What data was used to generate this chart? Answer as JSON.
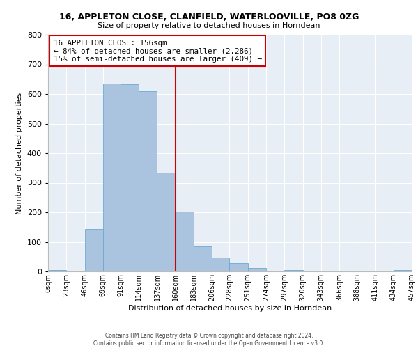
{
  "title": "16, APPLETON CLOSE, CLANFIELD, WATERLOOVILLE, PO8 0ZG",
  "subtitle": "Size of property relative to detached houses in Horndean",
  "xlabel": "Distribution of detached houses by size in Horndean",
  "ylabel": "Number of detached properties",
  "bin_edges": [
    0,
    23,
    46,
    69,
    91,
    114,
    137,
    160,
    183,
    206,
    228,
    251,
    274,
    297,
    320,
    343,
    366,
    388,
    411,
    434,
    457
  ],
  "counts": [
    5,
    0,
    143,
    635,
    632,
    610,
    333,
    202,
    85,
    47,
    28,
    12,
    0,
    5,
    0,
    0,
    0,
    0,
    0,
    5
  ],
  "tick_labels": [
    "0sqm",
    "23sqm",
    "46sqm",
    "69sqm",
    "91sqm",
    "114sqm",
    "137sqm",
    "160sqm",
    "183sqm",
    "206sqm",
    "228sqm",
    "251sqm",
    "274sqm",
    "297sqm",
    "320sqm",
    "343sqm",
    "366sqm",
    "388sqm",
    "411sqm",
    "434sqm",
    "457sqm"
  ],
  "bar_color": "#aac4e0",
  "bar_edge_color": "#6aaad4",
  "vline_x": 160,
  "vline_color": "#cc0000",
  "annotation_text": "16 APPLETON CLOSE: 156sqm\n← 84% of detached houses are smaller (2,286)\n15% of semi-detached houses are larger (409) →",
  "annotation_box_color": "#cc0000",
  "ylim": [
    0,
    800
  ],
  "yticks": [
    0,
    100,
    200,
    300,
    400,
    500,
    600,
    700,
    800
  ],
  "background_color": "#e8eef5",
  "footer_line1": "Contains HM Land Registry data © Crown copyright and database right 2024.",
  "footer_line2": "Contains public sector information licensed under the Open Government Licence v3.0."
}
